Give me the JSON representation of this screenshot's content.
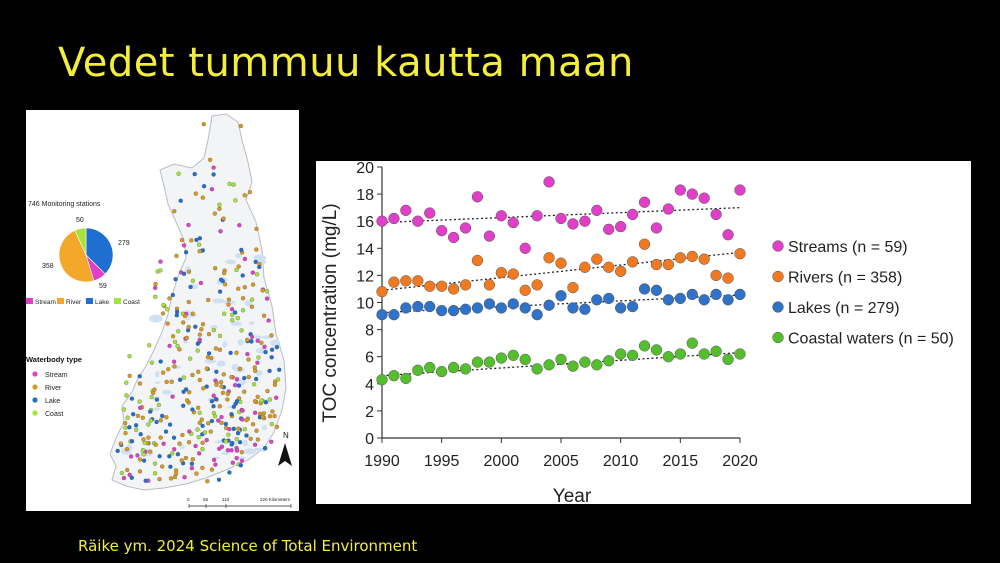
{
  "slide": {
    "title": "Vedet tummuu kautta maan",
    "citation": "Räike ym. 2024 Science of Total Environment"
  },
  "map": {
    "stations_title": "746 Monitoring stations",
    "pie": [
      {
        "label": "Stream",
        "value": 59,
        "color": "#e040c8"
      },
      {
        "label": "River",
        "value": 358,
        "color": "#f4a82a"
      },
      {
        "label": "Lake",
        "value": 279,
        "color": "#1f6fd0"
      },
      {
        "label": "Coast",
        "value": 50,
        "color": "#a4e33a"
      }
    ],
    "pie_labels": {
      "stream": "59",
      "river": "358",
      "lake": "279",
      "coast": "50"
    },
    "pie_legend": [
      "Stream",
      "River",
      "Lake",
      "Coast"
    ],
    "waterbody_title": "Waterbody type",
    "waterbody_legend": [
      "Stream",
      "River",
      "Lake",
      "Coast"
    ],
    "north": "N",
    "scale_ticks": [
      "0",
      "55",
      "110",
      "220 Kilometers"
    ]
  },
  "chart_data": {
    "type": "scatter",
    "xlabel": "Year",
    "ylabel": "TOC concentration (mg/L)",
    "xlim": [
      1990,
      2020
    ],
    "ylim": [
      0,
      20
    ],
    "xticks": [
      1990,
      1995,
      2000,
      2005,
      2010,
      2015,
      2020
    ],
    "yticks": [
      0,
      2,
      4,
      6,
      8,
      10,
      12,
      14,
      16,
      18,
      20
    ],
    "grid": false,
    "legend_position": "right",
    "x": [
      1990,
      1991,
      1992,
      1993,
      1994,
      1995,
      1996,
      1997,
      1998,
      1999,
      2000,
      2001,
      2002,
      2003,
      2004,
      2005,
      2006,
      2007,
      2008,
      2009,
      2010,
      2011,
      2012,
      2013,
      2014,
      2015,
      2016,
      2017,
      2018,
      2019,
      2020
    ],
    "series": [
      {
        "name": "Streams (n = 59)",
        "color": "#e040c8",
        "values": [
          16.0,
          16.2,
          16.8,
          16.0,
          16.6,
          15.3,
          14.8,
          15.5,
          17.8,
          14.9,
          16.4,
          15.9,
          14.0,
          16.4,
          18.9,
          16.2,
          15.8,
          16.0,
          16.8,
          15.4,
          15.6,
          16.5,
          17.4,
          15.5,
          16.9,
          18.3,
          18.0,
          17.7,
          16.5,
          15.0,
          18.3
        ],
        "trend": [
          15.9,
          17.0
        ]
      },
      {
        "name": "Rivers (n = 358)",
        "color": "#f07a22",
        "values": [
          10.8,
          11.5,
          11.6,
          11.6,
          11.2,
          11.2,
          11.0,
          11.3,
          13.1,
          11.3,
          12.2,
          12.1,
          10.9,
          11.3,
          13.3,
          12.9,
          11.1,
          12.6,
          13.2,
          12.6,
          12.3,
          13.0,
          14.3,
          12.8,
          12.8,
          13.3,
          13.4,
          13.2,
          12.0,
          11.8,
          13.6
        ],
        "trend": [
          10.9,
          13.7
        ]
      },
      {
        "name": "Lakes (n = 279)",
        "color": "#2f72c8",
        "values": [
          9.1,
          9.1,
          9.6,
          9.7,
          9.7,
          9.4,
          9.4,
          9.5,
          9.6,
          9.9,
          9.6,
          9.9,
          9.6,
          9.1,
          9.8,
          10.5,
          9.6,
          9.5,
          10.2,
          10.3,
          9.6,
          9.7,
          11.0,
          10.9,
          10.2,
          10.3,
          10.6,
          10.2,
          10.6,
          10.2,
          10.6
        ]
      },
      {
        "name": "Coastal waters (n = 50)",
        "color": "#55be2e",
        "values": [
          4.3,
          4.6,
          4.4,
          5.0,
          5.2,
          4.9,
          5.2,
          5.1,
          5.6,
          5.6,
          5.9,
          6.1,
          5.8,
          5.1,
          5.4,
          5.8,
          5.3,
          5.6,
          5.4,
          5.7,
          6.2,
          6.1,
          6.8,
          6.5,
          6.0,
          6.2,
          7.0,
          6.2,
          6.4,
          5.8,
          6.2
        ],
        "trend": [
          4.6,
          6.3
        ]
      }
    ]
  }
}
